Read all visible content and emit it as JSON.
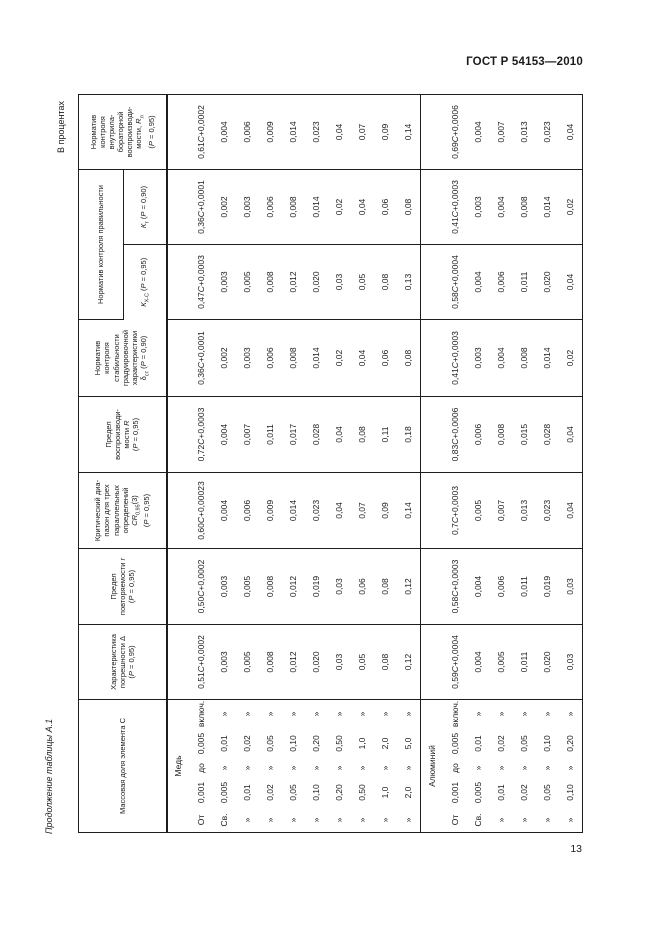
{
  "page": {
    "running_header": "ГОСТ Р 54153—2010",
    "units_note": "В процентах",
    "table_caption": "Продолжение таблицы А.1",
    "page_number": "13"
  },
  "table": {
    "orientation_note": "table rotated 90 degrees counterclockwise on page",
    "group_header": {
      "label": "Норматив контроля правильности",
      "span_columns": [
        "K_xc",
        "K_t"
      ]
    },
    "columns": [
      {
        "id": "mass_fraction",
        "header_lines": [
          "Массовая доля элемента С"
        ]
      },
      {
        "id": "delta",
        "header_lines": [
          "Характеристика",
          "погрешности Δ",
          "(*Р* = 0,95)"
        ]
      },
      {
        "id": "r",
        "header_lines": [
          "Предел",
          "повторяемости *r*",
          "(*Р* = 0,95)"
        ]
      },
      {
        "id": "cr",
        "header_lines": [
          "Критический диа-",
          "пазон для трех",
          "параллельных",
          "определений",
          "*CR*_{0,95}(3)",
          "(*Р* = 0,95)"
        ]
      },
      {
        "id": "R",
        "header_lines": [
          "Предел",
          "воспроизводи-",
          "мости *R*",
          "(*Р* = 0,95)"
        ]
      },
      {
        "id": "delta_st",
        "header_lines": [
          "Норматив",
          "контроля",
          "стабильности",
          "градуировочной",
          "характеристики",
          "δ_{ст} (*Р* = 0,90)"
        ]
      },
      {
        "id": "K_xc",
        "header_lines": [
          "*К*_{Х-С} (*Р* = 0,95)"
        ]
      },
      {
        "id": "K_t",
        "header_lines": [
          "*К*_{т} (*Р* = 0,90)"
        ]
      },
      {
        "id": "R_l",
        "header_lines": [
          "Норматив",
          "контроля",
          "внутрила-",
          "бораторной",
          "воспроизводи-",
          "мости, *R*_{л}",
          "(*Р* = 0,95)"
        ]
      }
    ],
    "sections": [
      {
        "label": "Медь",
        "rows": [
          {
            "range": [
              "От",
              "0,001",
              "до",
              "0,005",
              "включ."
            ],
            "values": [
              "0,51*С*+0,0002",
              "0,50*С*+0,0002",
              "0,60*С*+0,00023",
              "0,72*С*+0,0003",
              "0,36*С*+0,0001",
              "0,47*С*+0,0003",
              "0,36*С*+0,0001",
              "0,61*С*+0,0002"
            ]
          },
          {
            "range": [
              "Св.",
              "0,005",
              "»",
              "0,01",
              "»"
            ],
            "values": [
              "0,003",
              "0,003",
              "0,004",
              "0,004",
              "0,002",
              "0,003",
              "0,002",
              "0,004"
            ]
          },
          {
            "range": [
              "»",
              "0,01",
              "»",
              "0,02",
              "»"
            ],
            "values": [
              "0,005",
              "0,005",
              "0,006",
              "0,007",
              "0,003",
              "0,005",
              "0,003",
              "0,006"
            ]
          },
          {
            "range": [
              "»",
              "0,02",
              "»",
              "0,05",
              "»"
            ],
            "values": [
              "0,008",
              "0,008",
              "0,009",
              "0,011",
              "0,006",
              "0,008",
              "0,006",
              "0,009"
            ]
          },
          {
            "range": [
              "»",
              "0,05",
              "»",
              "0,10",
              "»"
            ],
            "values": [
              "0,012",
              "0,012",
              "0,014",
              "0,017",
              "0,008",
              "0,012",
              "0,008",
              "0,014"
            ]
          },
          {
            "range": [
              "»",
              "0,10",
              "»",
              "0,20",
              "»"
            ],
            "values": [
              "0,020",
              "0,019",
              "0,023",
              "0,028",
              "0,014",
              "0,020",
              "0,014",
              "0,023"
            ]
          },
          {
            "range": [
              "»",
              "0,20",
              "»",
              "0,50",
              "»"
            ],
            "values": [
              "0,03",
              "0,03",
              "0,04",
              "0,04",
              "0,02",
              "0,03",
              "0,02",
              "0,04"
            ]
          },
          {
            "range": [
              "»",
              "0,50",
              "»",
              "1,0",
              "»"
            ],
            "values": [
              "0,05",
              "0,06",
              "0,07",
              "0,08",
              "0,04",
              "0,05",
              "0,04",
              "0,07"
            ]
          },
          {
            "range": [
              "»",
              "1,0",
              "»",
              "2,0",
              "»"
            ],
            "values": [
              "0,08",
              "0,08",
              "0,09",
              "0,11",
              "0,06",
              "0,08",
              "0,06",
              "0,09"
            ]
          },
          {
            "range": [
              "»",
              "2,0",
              "»",
              "5,0",
              "»"
            ],
            "values": [
              "0,12",
              "0,12",
              "0,14",
              "0,18",
              "0,08",
              "0,13",
              "0,08",
              "0,14"
            ]
          }
        ]
      },
      {
        "label": "Алюминий",
        "rows": [
          {
            "range": [
              "От",
              "0,001",
              "до",
              "0,005",
              "включ."
            ],
            "values": [
              "0,59*С*+0,0004",
              "0,58*С*+0,0003",
              "0,7*С*+0,0003",
              "0,83*С*+0,0006",
              "0,41*С*+0,0003",
              "0,58*С*+0,0004",
              "0,41*С*+0,0003",
              "0,69*С*+0,0006"
            ]
          },
          {
            "range": [
              "Св.",
              "0,005",
              "»",
              "0,01",
              "»"
            ],
            "values": [
              "0,004",
              "0,004",
              "0,005",
              "0,006",
              "0,003",
              "0,004",
              "0,003",
              "0,004"
            ]
          },
          {
            "range": [
              "»",
              "0,01",
              "»",
              "0,02",
              "»"
            ],
            "values": [
              "0,005",
              "0,006",
              "0,007",
              "0,008",
              "0,004",
              "0,006",
              "0,004",
              "0,007"
            ]
          },
          {
            "range": [
              "»",
              "0,02",
              "»",
              "0,05",
              "»"
            ],
            "values": [
              "0,011",
              "0,011",
              "0,013",
              "0,015",
              "0,008",
              "0,011",
              "0,008",
              "0,013"
            ]
          },
          {
            "range": [
              "»",
              "0,05",
              "»",
              "0,10",
              "»"
            ],
            "values": [
              "0,020",
              "0,019",
              "0,023",
              "0,028",
              "0,014",
              "0,020",
              "0,014",
              "0,023"
            ]
          },
          {
            "range": [
              "»",
              "0,10",
              "»",
              "0,20",
              "»"
            ],
            "values": [
              "0,03",
              "0,03",
              "0,04",
              "0,04",
              "0,02",
              "0,04",
              "0,02",
              "0,04"
            ]
          }
        ]
      }
    ]
  }
}
